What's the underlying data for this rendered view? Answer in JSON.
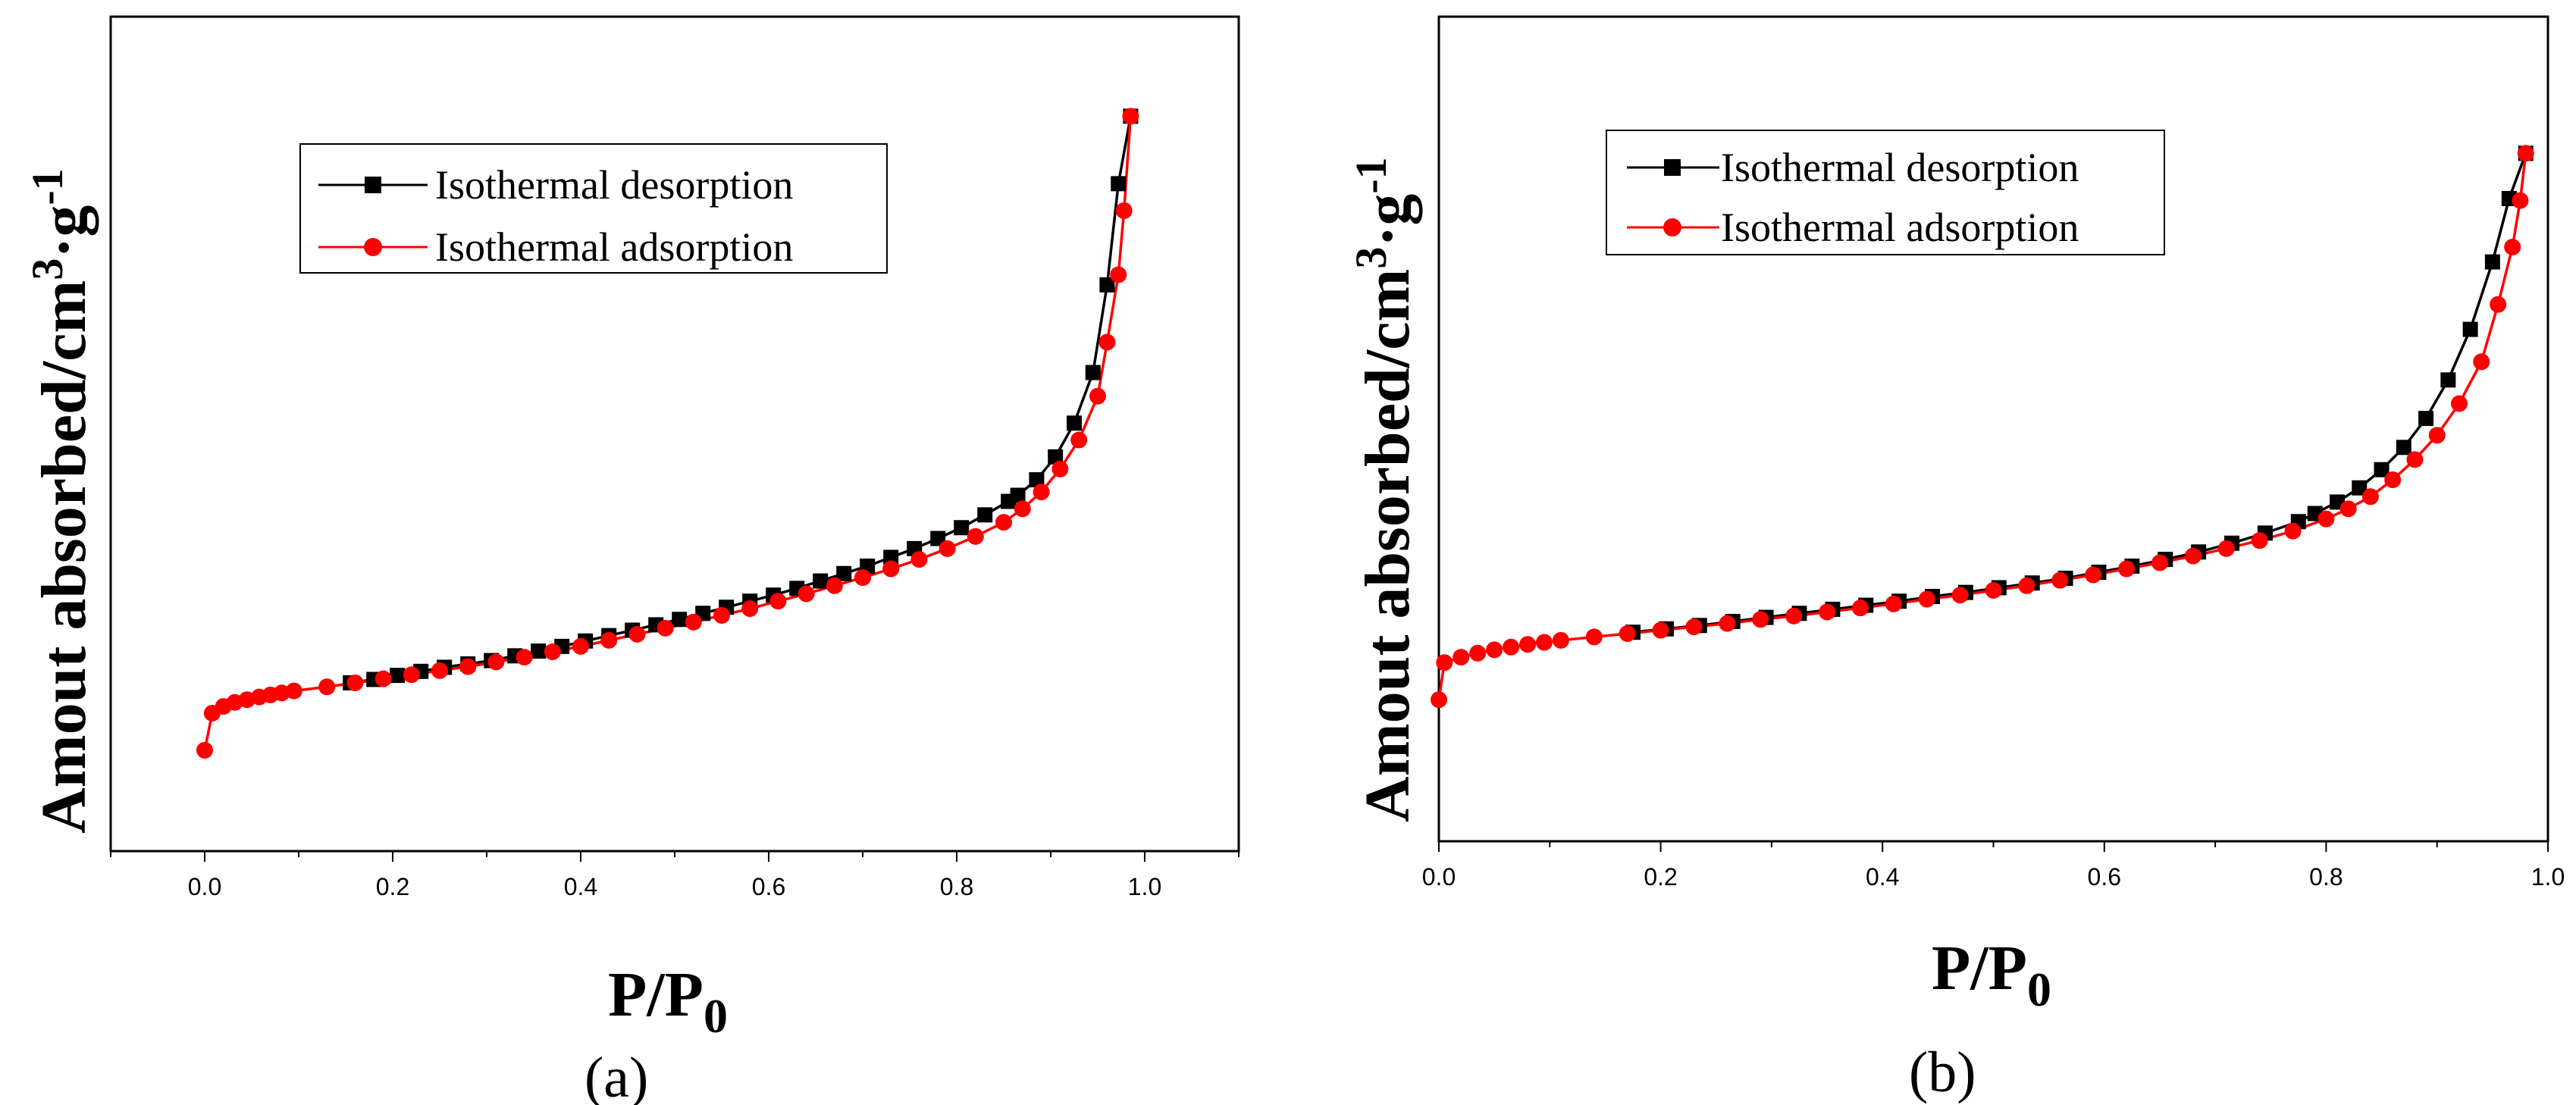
{
  "chart_data": [
    {
      "type": "line",
      "panel_label": "(a)",
      "title": "",
      "xlabel": {
        "main": "P/P",
        "sub": "0"
      },
      "ylabel": {
        "main": "Amout absorbed/cm",
        "sup1": "3",
        "mid": "·g",
        "sup2": "-1"
      },
      "xlim": [
        -0.1,
        1.1
      ],
      "ylim": [
        0,
        100
      ],
      "xticks": [
        "0.0",
        "0.2",
        "0.4",
        "0.6",
        "0.8",
        "1.0"
      ],
      "xtick_values": [
        0.0,
        0.2,
        0.4,
        0.6,
        0.8,
        1.0
      ],
      "legend_position": "top-center",
      "series": [
        {
          "name": "Isothermal desorption",
          "color": "#000000",
          "marker": "square",
          "x": [
            0.155,
            0.18,
            0.205,
            0.23,
            0.255,
            0.28,
            0.305,
            0.33,
            0.355,
            0.38,
            0.405,
            0.43,
            0.455,
            0.48,
            0.505,
            0.53,
            0.555,
            0.58,
            0.605,
            0.63,
            0.655,
            0.68,
            0.705,
            0.73,
            0.755,
            0.78,
            0.805,
            0.83,
            0.855,
            0.865,
            0.885,
            0.905,
            0.925,
            0.945,
            0.96,
            0.972,
            0.985
          ],
          "y": [
            14.5,
            15.0,
            15.6,
            16.2,
            16.8,
            17.3,
            17.8,
            18.5,
            19.2,
            19.9,
            20.7,
            21.5,
            22.3,
            23.1,
            23.9,
            24.8,
            25.7,
            26.6,
            27.5,
            28.5,
            29.6,
            30.7,
            31.8,
            33.1,
            34.4,
            35.9,
            37.5,
            39.4,
            41.4,
            42.3,
            44.6,
            48.0,
            53.0,
            60.5,
            73.5,
            88.5,
            98.5
          ]
        },
        {
          "name": "Isothermal adsorption",
          "color": "#ff0000",
          "marker": "circle",
          "x": [
            0.0,
            0.008,
            0.02,
            0.032,
            0.045,
            0.058,
            0.07,
            0.082,
            0.095,
            0.13,
            0.16,
            0.19,
            0.22,
            0.25,
            0.28,
            0.31,
            0.34,
            0.37,
            0.4,
            0.43,
            0.46,
            0.49,
            0.52,
            0.55,
            0.58,
            0.61,
            0.64,
            0.67,
            0.7,
            0.73,
            0.76,
            0.79,
            0.82,
            0.85,
            0.87,
            0.89,
            0.91,
            0.93,
            0.95,
            0.96,
            0.972,
            0.978,
            0.985
          ],
          "y": [
            4.5,
            10.0,
            11.0,
            11.6,
            12.0,
            12.4,
            12.7,
            13.0,
            13.3,
            13.9,
            14.5,
            15.1,
            15.7,
            16.3,
            16.9,
            17.6,
            18.3,
            19.1,
            19.9,
            20.8,
            21.7,
            22.6,
            23.5,
            24.5,
            25.5,
            26.6,
            27.7,
            28.9,
            30.1,
            31.4,
            32.8,
            34.4,
            36.2,
            38.3,
            40.3,
            42.8,
            46.2,
            50.5,
            57.0,
            65.0,
            75.0,
            84.5,
            98.5
          ]
        }
      ]
    },
    {
      "type": "line",
      "panel_label": "(b)",
      "title": "",
      "xlabel": {
        "main": "P/P",
        "sub": "0"
      },
      "ylabel": {
        "main": "Amout absorbed/cm",
        "sup1": "3",
        "mid": "·g",
        "sup2": "-1"
      },
      "xlim": [
        0.0,
        1.0
      ],
      "ylim": [
        0,
        100
      ],
      "xticks": [
        "0.0",
        "0.2",
        "0.4",
        "0.6",
        "0.8",
        "1.0"
      ],
      "xtick_values": [
        0.0,
        0.2,
        0.4,
        0.6,
        0.8,
        1.0
      ],
      "legend_position": "top-center",
      "series": [
        {
          "name": "Isothermal desorption",
          "color": "#000000",
          "marker": "square",
          "x": [
            0.175,
            0.205,
            0.235,
            0.265,
            0.295,
            0.325,
            0.355,
            0.385,
            0.415,
            0.445,
            0.475,
            0.505,
            0.535,
            0.565,
            0.595,
            0.625,
            0.655,
            0.685,
            0.715,
            0.745,
            0.775,
            0.79,
            0.81,
            0.83,
            0.85,
            0.87,
            0.89,
            0.91,
            0.93,
            0.95,
            0.965,
            0.98
          ],
          "y": [
            22.0,
            22.5,
            23.0,
            23.6,
            24.2,
            24.8,
            25.4,
            26.0,
            26.6,
            27.3,
            27.9,
            28.6,
            29.3,
            30.0,
            30.9,
            31.8,
            32.8,
            33.9,
            35.2,
            36.7,
            38.4,
            39.6,
            41.3,
            43.4,
            46.1,
            49.4,
            53.7,
            59.4,
            66.9,
            76.9,
            86.3,
            93.0
          ]
        },
        {
          "name": "Isothermal adsorption",
          "color": "#ff0000",
          "marker": "circle",
          "x": [
            0.0,
            0.005,
            0.02,
            0.035,
            0.05,
            0.065,
            0.08,
            0.095,
            0.11,
            0.14,
            0.17,
            0.2,
            0.23,
            0.26,
            0.29,
            0.32,
            0.35,
            0.38,
            0.41,
            0.44,
            0.47,
            0.5,
            0.53,
            0.56,
            0.59,
            0.62,
            0.65,
            0.68,
            0.71,
            0.74,
            0.77,
            0.8,
            0.82,
            0.84,
            0.86,
            0.88,
            0.9,
            0.92,
            0.94,
            0.955,
            0.968,
            0.975,
            0.98
          ],
          "y": [
            12.0,
            17.5,
            18.3,
            18.9,
            19.4,
            19.8,
            20.2,
            20.5,
            20.8,
            21.3,
            21.8,
            22.3,
            22.8,
            23.3,
            23.9,
            24.4,
            25.0,
            25.6,
            26.2,
            26.9,
            27.5,
            28.2,
            28.9,
            29.7,
            30.5,
            31.4,
            32.3,
            33.3,
            34.4,
            35.6,
            37.0,
            38.8,
            40.3,
            42.1,
            44.6,
            47.6,
            51.2,
            55.9,
            62.1,
            70.6,
            79.1,
            86.0,
            93.0
          ]
        }
      ]
    }
  ]
}
